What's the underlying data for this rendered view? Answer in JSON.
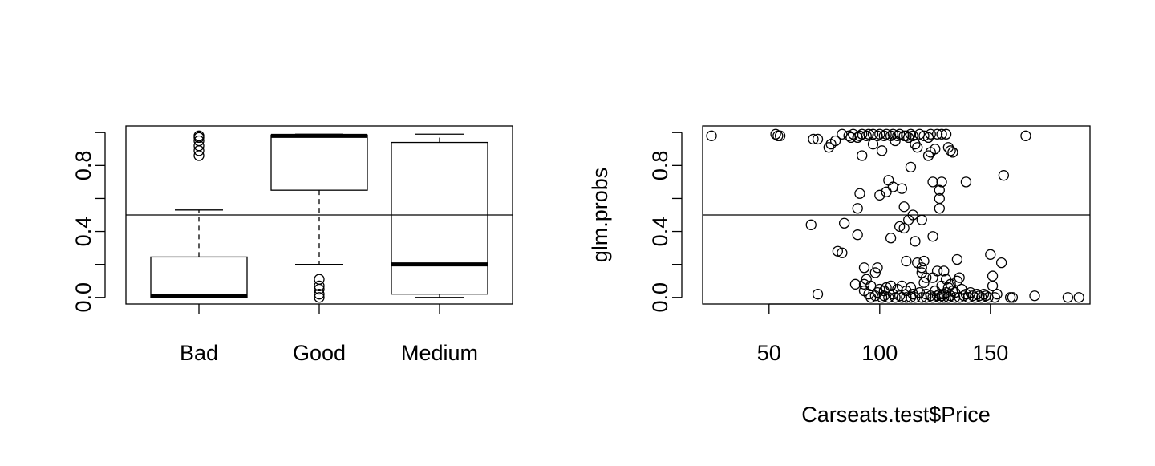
{
  "chart_data": [
    {
      "type": "box",
      "title": "",
      "xlabel": "",
      "ylabel": "",
      "ylim": [
        -0.04,
        1.04
      ],
      "yticks": [
        "0.0",
        "0.4",
        "0.8"
      ],
      "ytick_values": [
        0.0,
        0.2,
        0.4,
        0.6,
        0.8,
        1.0
      ],
      "categories": [
        "Bad",
        "Good",
        "Medium"
      ],
      "boxes": [
        {
          "name": "Bad",
          "whisker_low": 0.0,
          "q1": 0.0,
          "median": 0.01,
          "q3": 0.245,
          "whisker_high": 0.53,
          "outliers": [
            0.86,
            0.89,
            0.92,
            0.95,
            0.97,
            0.98
          ]
        },
        {
          "name": "Good",
          "whisker_low": 0.2,
          "q1": 0.65,
          "median": 0.98,
          "q3": 0.985,
          "whisker_high": 0.99,
          "outliers": [
            0.0,
            0.02,
            0.05,
            0.07,
            0.11
          ]
        },
        {
          "name": "Medium",
          "whisker_low": 0.0,
          "q1": 0.02,
          "median": 0.2,
          "q3": 0.94,
          "whisker_high": 0.99,
          "outliers": []
        }
      ],
      "hline": 0.5
    },
    {
      "type": "scatter",
      "title": "",
      "xlabel": "Carseats.test$Price",
      "ylabel": "glm.probs",
      "xlim": [
        20,
        195
      ],
      "ylim": [
        -0.04,
        1.04
      ],
      "xticks": [
        "50",
        "100",
        "150"
      ],
      "xtick_values": [
        50,
        100,
        150
      ],
      "yticks": [
        "0.0",
        "0.4",
        "0.8"
      ],
      "ytick_values": [
        0.0,
        0.2,
        0.4,
        0.6,
        0.8,
        1.0
      ],
      "hline": 0.5,
      "points": [
        [
          24,
          0.98
        ],
        [
          53,
          0.99
        ],
        [
          54,
          0.98
        ],
        [
          55,
          0.98
        ],
        [
          70,
          0.96
        ],
        [
          72,
          0.96
        ],
        [
          69,
          0.44
        ],
        [
          72,
          0.02
        ],
        [
          77,
          0.91
        ],
        [
          78,
          0.93
        ],
        [
          80,
          0.95
        ],
        [
          81,
          0.28
        ],
        [
          83,
          0.27
        ],
        [
          83,
          0.99
        ],
        [
          84,
          0.45
        ],
        [
          86,
          0.98
        ],
        [
          87,
          0.97
        ],
        [
          88,
          0.99
        ],
        [
          89,
          0.08
        ],
        [
          90,
          0.97
        ],
        [
          90,
          0.38
        ],
        [
          90,
          0.54
        ],
        [
          91,
          0.63
        ],
        [
          91,
          0.98
        ],
        [
          92,
          0.86
        ],
        [
          92,
          0.99
        ],
        [
          93,
          0.18
        ],
        [
          93,
          0.08
        ],
        [
          93,
          0.04
        ],
        [
          94,
          0.98
        ],
        [
          94,
          0.11
        ],
        [
          95,
          0.99
        ],
        [
          95,
          0.02
        ],
        [
          96,
          0.0
        ],
        [
          96,
          0.07
        ],
        [
          97,
          0.99
        ],
        [
          97,
          0.93
        ],
        [
          98,
          0.15
        ],
        [
          98,
          0.01
        ],
        [
          99,
          0.98
        ],
        [
          99,
          0.18
        ],
        [
          99,
          0.03
        ],
        [
          100,
          0.62
        ],
        [
          100,
          0.99
        ],
        [
          100,
          0.05
        ],
        [
          101,
          0.89
        ],
        [
          101,
          0.0
        ],
        [
          102,
          0.98
        ],
        [
          102,
          0.04
        ],
        [
          102,
          0.01
        ],
        [
          103,
          0.64
        ],
        [
          103,
          0.99
        ],
        [
          103,
          0.06
        ],
        [
          104,
          0.71
        ],
        [
          104,
          0.0
        ],
        [
          105,
          0.98
        ],
        [
          105,
          0.07
        ],
        [
          105,
          0.36
        ],
        [
          106,
          0.67
        ],
        [
          106,
          0.99
        ],
        [
          106,
          0.02
        ],
        [
          107,
          0.95
        ],
        [
          107,
          0.0
        ],
        [
          108,
          0.98
        ],
        [
          108,
          0.05
        ],
        [
          109,
          0.43
        ],
        [
          109,
          0.99
        ],
        [
          109,
          0.01
        ],
        [
          110,
          0.66
        ],
        [
          110,
          0.07
        ],
        [
          110,
          0.0
        ],
        [
          111,
          0.98
        ],
        [
          111,
          0.42
        ],
        [
          111,
          0.55
        ],
        [
          112,
          0.98
        ],
        [
          112,
          0.22
        ],
        [
          112,
          0.04
        ],
        [
          112,
          0.0
        ],
        [
          113,
          0.47
        ],
        [
          113,
          0.97
        ],
        [
          114,
          0.79
        ],
        [
          114,
          0.99
        ],
        [
          114,
          0.06
        ],
        [
          114,
          0.0
        ],
        [
          115,
          0.5
        ],
        [
          115,
          0.98
        ],
        [
          115,
          0.02
        ],
        [
          116,
          0.34
        ],
        [
          116,
          0.93
        ],
        [
          116,
          0.0
        ],
        [
          117,
          0.21
        ],
        [
          117,
          0.91
        ],
        [
          118,
          0.99
        ],
        [
          118,
          0.03
        ],
        [
          119,
          0.47
        ],
        [
          119,
          0.18
        ],
        [
          119,
          0.15
        ],
        [
          119,
          0.0
        ],
        [
          120,
          0.98
        ],
        [
          120,
          0.22
        ],
        [
          120,
          0.09
        ],
        [
          121,
          0.12
        ],
        [
          121,
          0.02
        ],
        [
          121,
          0.0
        ],
        [
          122,
          0.86
        ],
        [
          122,
          0.97
        ],
        [
          123,
          0.88
        ],
        [
          123,
          0.99
        ],
        [
          123,
          0.01
        ],
        [
          124,
          0.37
        ],
        [
          124,
          0.7
        ],
        [
          124,
          0.12
        ],
        [
          124,
          0.0
        ],
        [
          125,
          0.9
        ],
        [
          125,
          0.04
        ],
        [
          126,
          0.99
        ],
        [
          126,
          0.16
        ],
        [
          126,
          0.01
        ],
        [
          127,
          0.6
        ],
        [
          127,
          0.54
        ],
        [
          127,
          0.65
        ],
        [
          127,
          0.02
        ],
        [
          127,
          0.0
        ],
        [
          128,
          0.7
        ],
        [
          128,
          0.99
        ],
        [
          128,
          0.07
        ],
        [
          128,
          0.01
        ],
        [
          129,
          0.16
        ],
        [
          129,
          0.02
        ],
        [
          129,
          0.0
        ],
        [
          130,
          0.99
        ],
        [
          130,
          0.11
        ],
        [
          130,
          0.03
        ],
        [
          131,
          0.91
        ],
        [
          131,
          0.06
        ],
        [
          131,
          0.0
        ],
        [
          132,
          0.89
        ],
        [
          132,
          0.08
        ],
        [
          132,
          0.01
        ],
        [
          133,
          0.88
        ],
        [
          133,
          0.04
        ],
        [
          134,
          0.03
        ],
        [
          134,
          0.0
        ],
        [
          135,
          0.23
        ],
        [
          135,
          0.1
        ],
        [
          136,
          0.12
        ],
        [
          136,
          0.0
        ],
        [
          137,
          0.05
        ],
        [
          138,
          0.01
        ],
        [
          139,
          0.7
        ],
        [
          139,
          0.02
        ],
        [
          140,
          0.0
        ],
        [
          141,
          0.03
        ],
        [
          142,
          0.01
        ],
        [
          143,
          0.0
        ],
        [
          144,
          0.02
        ],
        [
          145,
          0.01
        ],
        [
          146,
          0.0
        ],
        [
          147,
          0.02
        ],
        [
          148,
          0.01
        ],
        [
          149,
          0.0
        ],
        [
          150,
          0.26
        ],
        [
          151,
          0.13
        ],
        [
          151,
          0.07
        ],
        [
          152,
          0.0
        ],
        [
          153,
          0.02
        ],
        [
          155,
          0.21
        ],
        [
          156,
          0.74
        ],
        [
          159,
          0.0
        ],
        [
          160,
          0.0
        ],
        [
          166,
          0.98
        ],
        [
          170,
          0.01
        ],
        [
          185,
          0.0
        ],
        [
          190,
          0.0
        ]
      ]
    }
  ]
}
